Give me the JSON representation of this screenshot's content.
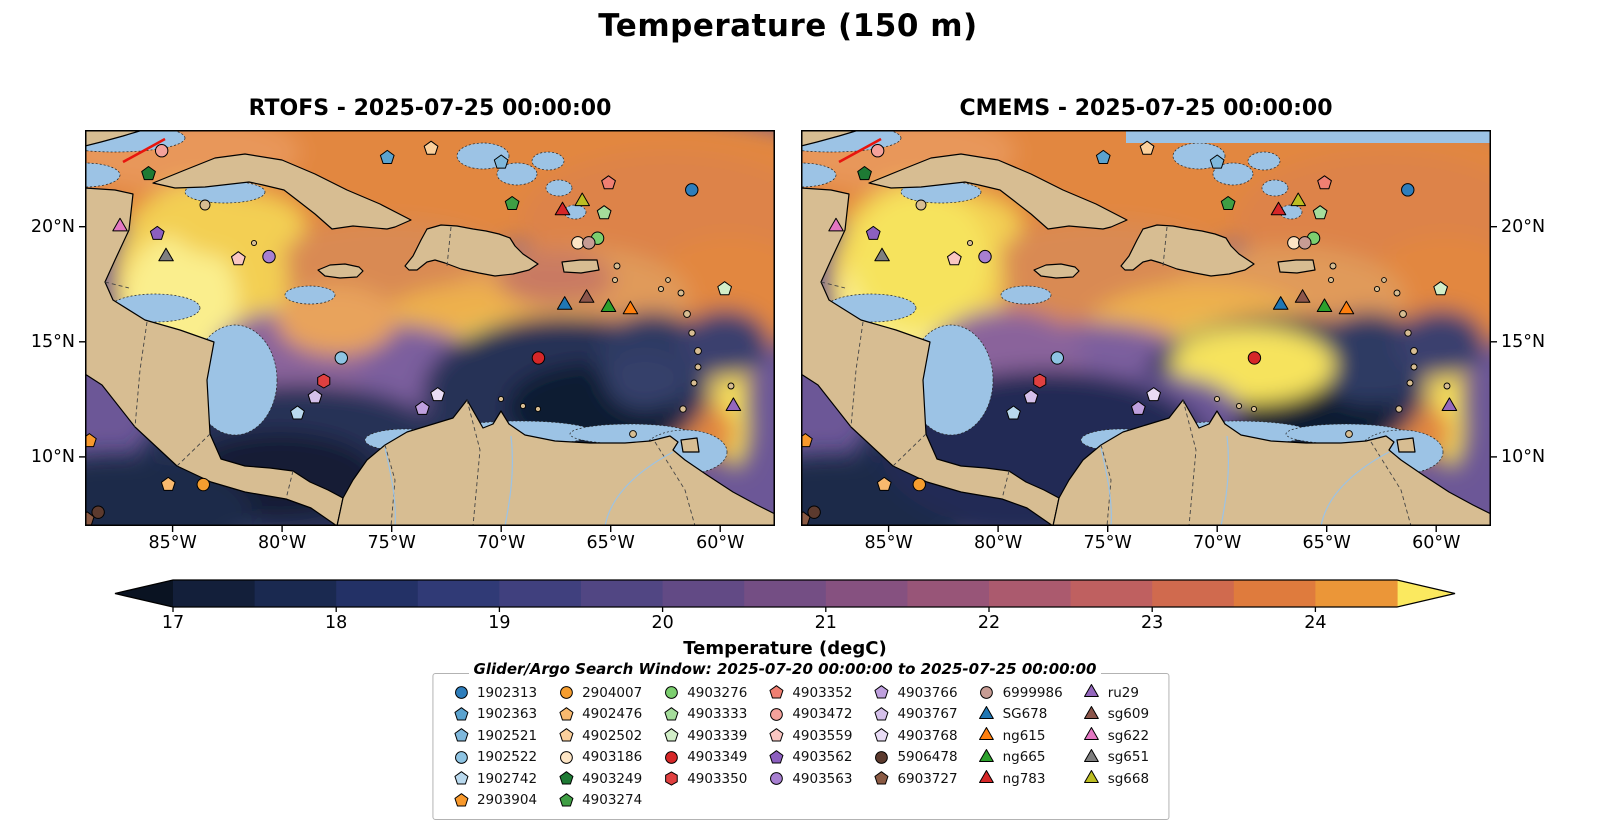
{
  "figure": {
    "title": "Temperature (150 m)"
  },
  "panels": [
    {
      "title": "RTOFS - 2025-07-25 00:00:00"
    },
    {
      "title": "CMEMS - 2025-07-25 00:00:00"
    }
  ],
  "axes": {
    "x_tick_labels": [
      "85°W",
      "80°W",
      "75°W",
      "70°W",
      "65°W",
      "60°W"
    ],
    "x_tick_lons": [
      -85,
      -80,
      -75,
      -70,
      -65,
      -60
    ],
    "y_tick_labels": [
      "20°N",
      "15°N",
      "10°N"
    ],
    "y_tick_lats": [
      20,
      15,
      10
    ]
  },
  "colorbar": {
    "label": "Temperature (degC)",
    "tick_labels": [
      "17",
      "18",
      "19",
      "20",
      "21",
      "22",
      "23",
      "24"
    ],
    "tick_values": [
      17,
      18,
      19,
      20,
      21,
      22,
      23,
      24
    ],
    "value_range": [
      17,
      24.5
    ],
    "segment_step": 0.5,
    "segment_colors": [
      "#131f3a",
      "#1a2950",
      "#233166",
      "#303a76",
      "#40407e",
      "#514683",
      "#624a85",
      "#744e84",
      "#865180",
      "#985578",
      "#ab5a6e",
      "#bf6060",
      "#d06a4e",
      "#df7b3d",
      "#eb9638"
    ],
    "under_color": "#0a1322",
    "over_color": "#fbe95f"
  },
  "notes": {
    "search_window": "Glider/Argo Search Window: 2025-07-20 00:00:00 to 2025-07-25 00:00:00"
  },
  "legend": {
    "columns": [
      6,
      6,
      5,
      5,
      5,
      5,
      5
    ]
  },
  "chart_data": {
    "type": "heatmap",
    "title": "Temperature (150 m)",
    "panel_titles": [
      "RTOFS - 2025-07-25 00:00:00",
      "CMEMS - 2025-07-25 00:00:00"
    ],
    "colorbar_label": "Temperature (degC)",
    "colorbar_ticks": [
      17,
      18,
      19,
      20,
      21,
      22,
      23,
      24
    ],
    "value_range_degC": [
      17,
      24.5
    ],
    "lon_extent": [
      -89,
      -57.5
    ],
    "lat_extent": [
      7,
      24.2
    ],
    "x_ticks_deg_west": [
      85,
      80,
      75,
      70,
      65,
      60
    ],
    "y_ticks_deg_north": [
      20,
      15,
      10
    ],
    "region": "Caribbean Sea",
    "platforms": [
      {
        "label": "1902313",
        "type": "argo",
        "marker": "circle",
        "color": "#2e7ebc",
        "lon": -61.3,
        "lat": 21.6
      },
      {
        "label": "1902363",
        "type": "argo",
        "marker": "pentagon",
        "color": "#5ba3cf",
        "lon": -75.2,
        "lat": 23.0
      },
      {
        "label": "1902521",
        "type": "argo",
        "marker": "pentagon",
        "color": "#7fb8dc",
        "lon": -70.0,
        "lat": 22.8
      },
      {
        "label": "1902522",
        "type": "argo",
        "marker": "circle",
        "color": "#8ec4e3",
        "lon": -77.3,
        "lat": 14.3
      },
      {
        "label": "1902742",
        "type": "argo",
        "marker": "pentagon",
        "color": "#b9d9ee",
        "lon": -79.3,
        "lat": 11.9
      },
      {
        "label": "2903904",
        "type": "argo",
        "marker": "pentagon",
        "color": "#f8992c",
        "lon": -88.8,
        "lat": 10.7
      },
      {
        "label": "2904007",
        "type": "argo",
        "marker": "circle",
        "color": "#f59d2f",
        "lon": -83.6,
        "lat": 8.8
      },
      {
        "label": "4902476",
        "type": "argo",
        "marker": "pentagon",
        "color": "#f9b96e",
        "lon": -85.2,
        "lat": 8.8
      },
      {
        "label": "4902502",
        "type": "argo",
        "marker": "pentagon",
        "color": "#fbd09c",
        "lon": -73.2,
        "lat": 23.4
      },
      {
        "label": "4903186",
        "type": "argo",
        "marker": "circle",
        "color": "#fde5c5",
        "lon": -66.5,
        "lat": 19.3
      },
      {
        "label": "4903249",
        "type": "argo",
        "marker": "pentagon",
        "color": "#1e7a34",
        "lon": -86.1,
        "lat": 22.3
      },
      {
        "label": "4903274",
        "type": "argo",
        "marker": "pentagon",
        "color": "#3f9e44",
        "lon": -69.5,
        "lat": 21.0
      },
      {
        "label": "4903276",
        "type": "argo",
        "marker": "circle",
        "color": "#7ccf6f",
        "lon": -65.6,
        "lat": 19.5
      },
      {
        "label": "4903333",
        "type": "argo",
        "marker": "pentagon",
        "color": "#a5dd9b",
        "lon": -65.3,
        "lat": 20.6
      },
      {
        "label": "4903339",
        "type": "argo",
        "marker": "pentagon",
        "color": "#d2eec8",
        "lon": -59.8,
        "lat": 17.3
      },
      {
        "label": "4903349",
        "type": "argo",
        "marker": "circle",
        "color": "#d62728",
        "lon": -68.3,
        "lat": 14.3
      },
      {
        "label": "4903350",
        "type": "argo",
        "marker": "hexagon",
        "color": "#e04040",
        "lon": -78.1,
        "lat": 13.3
      },
      {
        "label": "4903352",
        "type": "argo",
        "marker": "pentagon",
        "color": "#ef7f72",
        "lon": -65.1,
        "lat": 21.9
      },
      {
        "label": "4903472",
        "type": "argo",
        "marker": "circle",
        "color": "#f4a29b",
        "lon": -85.5,
        "lat": 23.3
      },
      {
        "label": "4903559",
        "type": "argo",
        "marker": "pentagon",
        "color": "#f9c6c2",
        "lon": -82.0,
        "lat": 18.6
      },
      {
        "label": "4903562",
        "type": "argo",
        "marker": "pentagon",
        "color": "#8c5fbf",
        "lon": -85.7,
        "lat": 19.7
      },
      {
        "label": "4903563",
        "type": "argo",
        "marker": "circle",
        "color": "#a77fd1",
        "lon": -80.6,
        "lat": 18.7
      },
      {
        "label": "4903766",
        "type": "argo",
        "marker": "pentagon",
        "color": "#bfa0de",
        "lon": -73.6,
        "lat": 12.1
      },
      {
        "label": "4903767",
        "type": "argo",
        "marker": "pentagon",
        "color": "#d5c0ea",
        "lon": -78.5,
        "lat": 12.6
      },
      {
        "label": "4903768",
        "type": "argo",
        "marker": "pentagon",
        "color": "#e9dcf5",
        "lon": -72.9,
        "lat": 12.7
      },
      {
        "label": "5906478",
        "type": "argo",
        "marker": "circle",
        "color": "#5c3a2e",
        "lon": -88.4,
        "lat": 7.6
      },
      {
        "label": "6903727",
        "type": "argo",
        "marker": "pentagon",
        "color": "#8a5a44",
        "lon": -88.9,
        "lat": 7.3
      },
      {
        "label": "6999986",
        "type": "argo",
        "marker": "circle",
        "color": "#c79c94",
        "lon": -66.0,
        "lat": 19.3
      },
      {
        "label": "SG678",
        "type": "glider",
        "marker": "triangle",
        "color": "#1f77b4",
        "lon": -67.1,
        "lat": 16.6
      },
      {
        "label": "ng615",
        "type": "glider",
        "marker": "triangle",
        "color": "#ff7f0e",
        "lon": -64.1,
        "lat": 16.4
      },
      {
        "label": "ng665",
        "type": "glider",
        "marker": "triangle",
        "color": "#2ca02c",
        "lon": -65.1,
        "lat": 16.5
      },
      {
        "label": "ng783",
        "type": "glider",
        "marker": "triangle",
        "color": "#d62728",
        "lon": -67.2,
        "lat": 20.7
      },
      {
        "label": "ru29",
        "type": "glider",
        "marker": "triangle",
        "color": "#9467bd",
        "lon": -59.4,
        "lat": 12.2
      },
      {
        "label": "sg609",
        "type": "glider",
        "marker": "triangle",
        "color": "#8c564b",
        "lon": -66.1,
        "lat": 16.9
      },
      {
        "label": "sg622",
        "type": "glider",
        "marker": "triangle",
        "color": "#e377c2",
        "lon": -87.4,
        "lat": 20.0
      },
      {
        "label": "sg651",
        "type": "glider",
        "marker": "triangle",
        "color": "#7f7f7f",
        "lon": -85.3,
        "lat": 18.7
      },
      {
        "label": "sg668",
        "type": "glider",
        "marker": "triangle",
        "color": "#bcbd22",
        "lon": -66.3,
        "lat": 21.1
      }
    ]
  }
}
